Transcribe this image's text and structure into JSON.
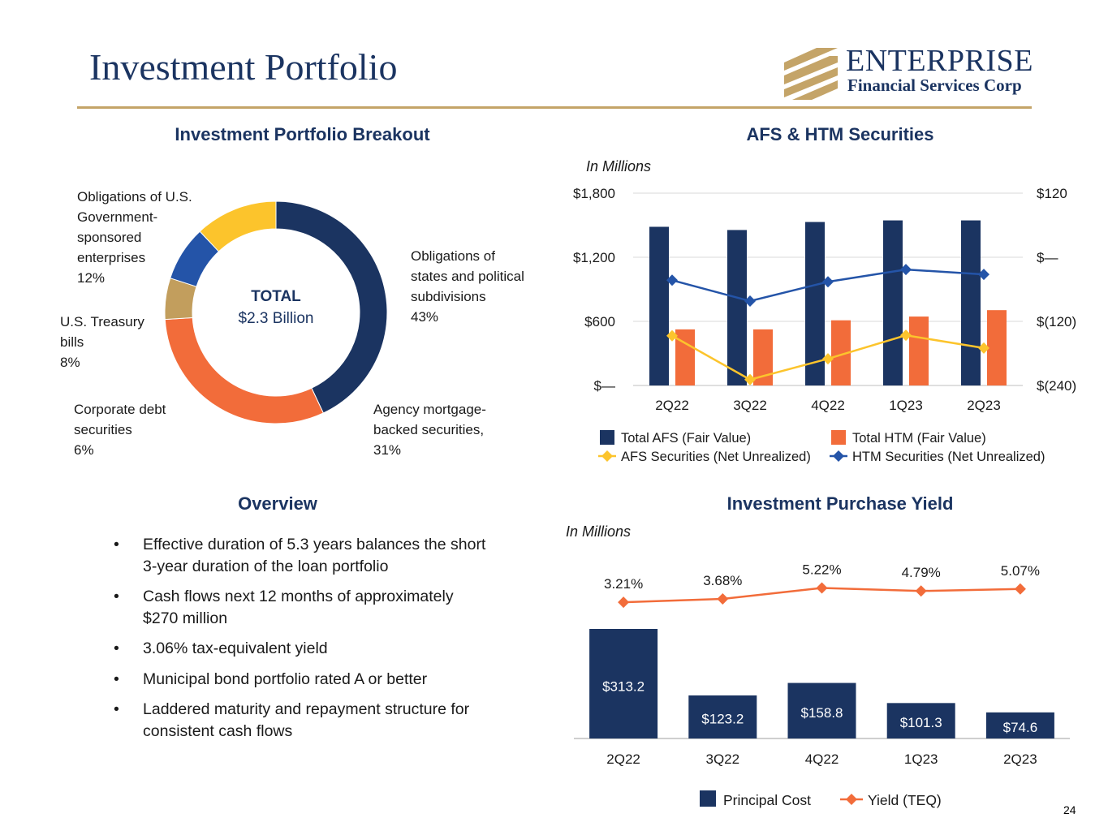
{
  "header": {
    "title": "Investment Portfolio",
    "logo_word": "ENTERPRISE",
    "logo_sub": "Financial Services Corp"
  },
  "colors": {
    "navy": "#1b3461",
    "orange": "#f26c3a",
    "yellow": "#fcc42c",
    "blue": "#2454a8",
    "tan": "#c29e5d",
    "gold": "#c4a468"
  },
  "breakout": {
    "title": "Investment Portfolio Breakout",
    "total_label": "TOTAL",
    "total_value": "$2.3 Billion",
    "labels": [
      {
        "lines": [
          "Obligations of U.S.",
          "Government-",
          "sponsored",
          "enterprises",
          "12%"
        ]
      },
      {
        "lines": [
          "Obligations of",
          "states and political",
          "subdivisions",
          "43%"
        ]
      },
      {
        "lines": [
          "U.S. Treasury",
          "bills",
          "8%"
        ]
      },
      {
        "lines": [
          "Corporate debt",
          "securities",
          "6%"
        ]
      },
      {
        "lines": [
          "Agency mortgage-",
          "backed securities,",
          "31%"
        ]
      }
    ]
  },
  "afs_chart": {
    "title": "AFS & HTM Securities",
    "units": "In Millions",
    "legend": [
      "Total AFS (Fair Value)",
      "Total HTM (Fair Value)",
      "AFS Securities (Net Unrealized)",
      "HTM Securities (Net Unrealized)"
    ]
  },
  "yield_chart": {
    "title": "Investment Purchase Yield",
    "units": "In Millions",
    "legend": [
      "Principal Cost",
      "Yield (TEQ)"
    ]
  },
  "overview": {
    "title": "Overview",
    "bullet_char": "•",
    "items": [
      "Effective duration of 5.3 years balances the short 3-year duration of the loan portfolio",
      "Cash flows next 12 months of approximately $270 million",
      "3.06% tax-equivalent yield",
      "Municipal bond portfolio rated A or better",
      "Laddered maturity and repayment structure for consistent cash flows"
    ]
  },
  "page_number": "24",
  "chart_data": [
    {
      "type": "pie",
      "style": "donut",
      "title": "Investment Portfolio Breakout",
      "slices": [
        {
          "name": "Obligations of states and political subdivisions",
          "value": 43,
          "color": "#1b3461"
        },
        {
          "name": "Agency mortgage-backed securities",
          "value": 31,
          "color": "#f26c3a"
        },
        {
          "name": "Corporate debt securities",
          "value": 6,
          "color": "#c29e5d"
        },
        {
          "name": "U.S. Treasury bills",
          "value": 8,
          "color": "#2454a8"
        },
        {
          "name": "Obligations of U.S. Government-sponsored enterprises",
          "value": 12,
          "color": "#fcc42c"
        }
      ],
      "center_text": "TOTAL $2.3 Billion"
    },
    {
      "type": "bar",
      "title": "AFS & HTM Securities",
      "categories": [
        "2Q22",
        "3Q22",
        "4Q22",
        "1Q23",
        "2Q23"
      ],
      "series": [
        {
          "name": "Total AFS (Fair Value)",
          "kind": "bar",
          "axis": "left",
          "color": "#1b3461",
          "values": [
            1485,
            1455,
            1530,
            1545,
            1545
          ]
        },
        {
          "name": "Total HTM (Fair Value)",
          "kind": "bar",
          "axis": "left",
          "color": "#f26c3a",
          "values": [
            525,
            525,
            610,
            645,
            705
          ]
        },
        {
          "name": "AFS Securities (Net Unrealized)",
          "kind": "line",
          "axis": "right",
          "color": "#fcc42c",
          "marker": "diamond",
          "values": [
            -147,
            -229,
            -190,
            -146,
            -170
          ]
        },
        {
          "name": "HTM Securities (Net Unrealized)",
          "kind": "line",
          "axis": "right",
          "color": "#2454a8",
          "marker": "diamond",
          "values": [
            -43,
            -82,
            -46,
            -23,
            -32
          ]
        }
      ],
      "left_axis": {
        "ticks": [
          "$—",
          "$600",
          "$1,200",
          "$1,800"
        ],
        "tick_values": [
          0,
          600,
          1200,
          1800
        ],
        "ylim": [
          0,
          1800
        ]
      },
      "right_axis": {
        "ticks": [
          "$(240)",
          "$(120)",
          "$—",
          "$120"
        ],
        "tick_values": [
          -240,
          -120,
          0,
          120
        ],
        "ylim": [
          -240,
          120
        ]
      },
      "ylabel": "In Millions",
      "grid": true,
      "legend": "bottom"
    },
    {
      "type": "bar",
      "title": "Investment Purchase Yield",
      "categories": [
        "2Q22",
        "3Q22",
        "4Q22",
        "1Q23",
        "2Q23"
      ],
      "series": [
        {
          "name": "Principal Cost",
          "kind": "bar",
          "color": "#1b3461",
          "values": [
            313.2,
            123.2,
            158.8,
            101.3,
            74.6
          ],
          "labels": [
            "$313.2",
            "$123.2",
            "$158.8",
            "$101.3",
            "$74.6"
          ]
        },
        {
          "name": "Yield (TEQ)",
          "kind": "line",
          "color": "#f26c3a",
          "marker": "diamond",
          "values": [
            3.21,
            3.68,
            5.22,
            4.79,
            5.07
          ],
          "labels": [
            "3.21%",
            "3.68%",
            "5.22%",
            "4.79%",
            "5.07%"
          ]
        }
      ],
      "ylabel": "In Millions",
      "legend": "bottom"
    }
  ]
}
